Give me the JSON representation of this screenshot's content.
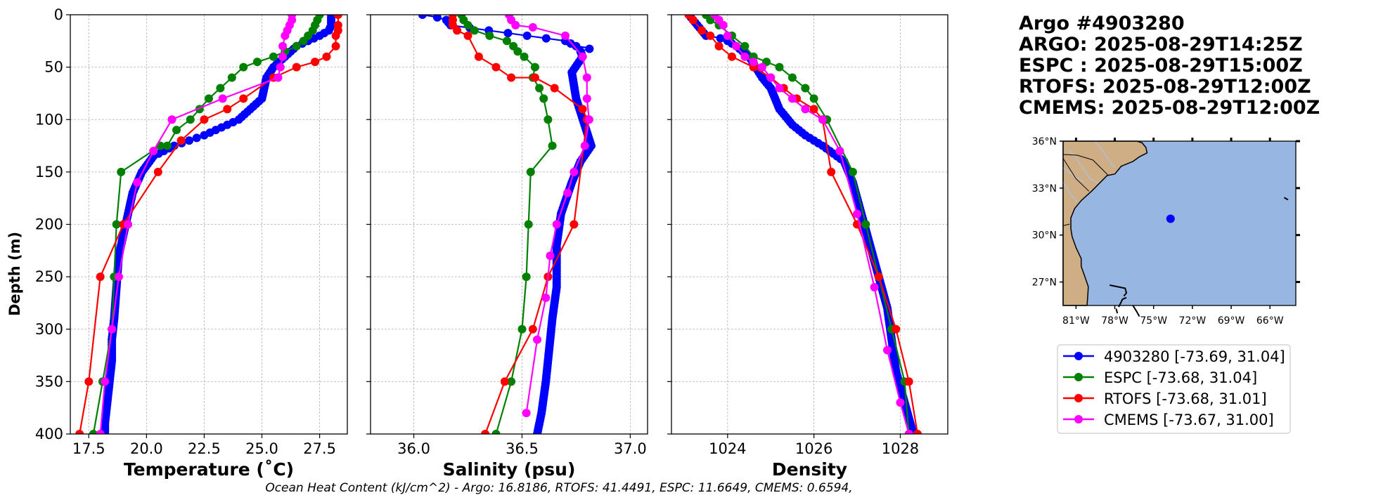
{
  "titles": [
    "Argo #4903280",
    "ARGO: 2025-08-29T14:25Z",
    "ESPC : 2025-08-29T15:00Z",
    "RTOFS: 2025-08-29T12:00Z",
    "CMEMS: 2025-08-29T12:00Z"
  ],
  "footer": "Ocean Heat Content (kJ/cm^2) - Argo: 16.8186,  RTOFS: 41.4491,  ESPC: 11.6649,  CMEMS: 0.6594,",
  "colors": {
    "argo": "#0000ff",
    "espc": "#008000",
    "rtofs": "#ff0000",
    "cmems": "#ff00ff",
    "ocean": "#97b6e1",
    "land": "#cfae86",
    "grid": "#b0b0b0"
  },
  "legend": [
    {
      "label": "4903280 [-73.69, 31.04]",
      "color": "#0000ff"
    },
    {
      "label": "ESPC [-73.68, 31.04]",
      "color": "#008000"
    },
    {
      "label": "RTOFS [-73.68, 31.01]",
      "color": "#ff0000"
    },
    {
      "label": "CMEMS [-73.67, 31.00]",
      "color": "#ff00ff"
    }
  ],
  "map": {
    "lat_ticks": [
      "36°N",
      "33°N",
      "30°N",
      "27°N"
    ],
    "lon_ticks": [
      "81°W",
      "78°W",
      "75°W",
      "72°W",
      "69°W",
      "66°W"
    ],
    "lon_range": [
      -82,
      -64
    ],
    "lat_range": [
      25.5,
      36
    ],
    "float": {
      "lon": -73.69,
      "lat": 31.04
    }
  },
  "chart_data": [
    {
      "type": "line",
      "xlabel": "Temperature (˚C)",
      "ylabel": "Depth (m)",
      "xlim": [
        16.7,
        28.7
      ],
      "ylim": [
        400,
        0
      ],
      "xticks": [
        17.5,
        20.0,
        22.5,
        25.0,
        27.5
      ],
      "xtick_labels": [
        "17.5",
        "20.0",
        "22.5",
        "25.0",
        "27.5"
      ],
      "yticks": [
        0,
        50,
        100,
        150,
        200,
        250,
        300,
        350,
        400
      ],
      "ytick_labels": [
        "0",
        "50",
        "100",
        "150",
        "200",
        "250",
        "300",
        "350",
        "400"
      ],
      "series": [
        {
          "name": "4903280",
          "dense": true,
          "x": [
            28.0,
            28.0,
            28.0,
            27.9,
            27.5,
            26.5,
            25.5,
            25.2,
            25.0,
            24.0,
            22.5,
            21.2,
            20.3,
            19.8,
            19.4,
            19.2,
            19.0,
            18.8,
            18.7,
            18.6,
            18.5,
            18.5,
            18.4,
            18.3,
            18.2,
            18.2
          ],
          "y": [
            0,
            5,
            10,
            15,
            20,
            30,
            50,
            60,
            80,
            100,
            115,
            125,
            135,
            150,
            170,
            190,
            210,
            230,
            260,
            290,
            310,
            330,
            350,
            370,
            390,
            400
          ]
        },
        {
          "name": "ESPC",
          "x": [
            27.5,
            27.4,
            27.3,
            27.2,
            27.0,
            26.8,
            26.5,
            26.0,
            25.5,
            24.8,
            24.2,
            23.7,
            23.2,
            22.7,
            22.3,
            21.9,
            21.3,
            20.9,
            20.6,
            18.9,
            18.7,
            18.6,
            18.5,
            18.1,
            17.7
          ],
          "y": [
            0,
            5,
            10,
            15,
            20,
            25,
            30,
            35,
            40,
            45,
            50,
            60,
            70,
            80,
            90,
            100,
            110,
            125,
            125,
            150,
            200,
            250,
            300,
            350,
            400
          ]
        },
        {
          "name": "RTOFS",
          "x": [
            28.3,
            28.3,
            28.3,
            28.2,
            28.2,
            27.8,
            27.3,
            26.5,
            25.5,
            24.2,
            23.5,
            22.5,
            21.5,
            20.5,
            19.0,
            18.0,
            17.5,
            17.1
          ],
          "y": [
            0,
            10,
            15,
            20,
            30,
            40,
            45,
            50,
            60,
            80,
            90,
            100,
            120,
            150,
            200,
            250,
            350,
            400
          ]
        },
        {
          "name": "CMEMS",
          "x": [
            26.3,
            26.3,
            26.2,
            26.1,
            26.0,
            25.9,
            25.9,
            25.8,
            25.7,
            23.3,
            21.1,
            20.3,
            19.6,
            19.2,
            18.8,
            18.5,
            18.2,
            18.0
          ],
          "y": [
            0,
            5,
            10,
            15,
            20,
            30,
            40,
            50,
            60,
            80,
            100,
            130,
            160,
            200,
            250,
            300,
            350,
            400
          ]
        }
      ]
    },
    {
      "type": "line",
      "xlabel": "Salinity (psu)",
      "xlim": [
        35.8,
        37.08
      ],
      "ylim": [
        400,
        0
      ],
      "xticks": [
        36.0,
        36.5,
        37.0
      ],
      "xtick_labels": [
        "36.0",
        "36.5",
        "37.0"
      ],
      "series": [
        {
          "name": "4903280",
          "dense": true,
          "x": [
            36.04,
            36.1,
            36.15,
            36.17,
            36.7,
            36.75,
            36.82,
            36.77,
            36.78,
            36.73,
            36.75,
            36.82,
            36.77,
            36.73,
            36.68,
            36.66,
            36.66,
            36.64,
            36.63,
            36.62,
            36.61,
            36.59,
            36.57
          ],
          "y": [
            0,
            2,
            5,
            10,
            25,
            30,
            32,
            35,
            40,
            55,
            80,
            125,
            140,
            160,
            190,
            220,
            260,
            290,
            310,
            330,
            350,
            380,
            400
          ]
        },
        {
          "name": "ESPC",
          "x": [
            36.22,
            36.23,
            36.25,
            36.28,
            36.35,
            36.43,
            36.46,
            36.48,
            36.51,
            36.56,
            36.55,
            36.58,
            36.6,
            36.62,
            36.64,
            36.54,
            36.53,
            36.52,
            36.5,
            36.45,
            36.38
          ],
          "y": [
            0,
            5,
            10,
            15,
            20,
            25,
            30,
            35,
            40,
            50,
            60,
            70,
            80,
            100,
            125,
            150,
            200,
            250,
            300,
            350,
            400
          ]
        },
        {
          "name": "RTOFS",
          "x": [
            36.18,
            36.18,
            36.18,
            36.2,
            36.25,
            36.3,
            36.38,
            36.45,
            36.56,
            36.65,
            36.78,
            36.8,
            36.74,
            36.62,
            36.55,
            36.42,
            36.33
          ],
          "y": [
            0,
            5,
            10,
            15,
            20,
            40,
            50,
            60,
            60,
            70,
            90,
            100,
            200,
            250,
            300,
            350,
            400
          ]
        },
        {
          "name": "CMEMS",
          "x": [
            36.44,
            36.45,
            36.47,
            36.55,
            36.7,
            36.78,
            36.8,
            36.8,
            36.81,
            36.79,
            36.74,
            36.71,
            36.66,
            36.63,
            36.61,
            36.57,
            36.52
          ],
          "y": [
            0,
            5,
            10,
            12,
            20,
            40,
            60,
            80,
            100,
            125,
            150,
            170,
            200,
            230,
            270,
            310,
            380
          ]
        }
      ]
    },
    {
      "type": "line",
      "xlabel": "Density",
      "xlim": [
        1022.7,
        1029.1
      ],
      "ylim": [
        400,
        0
      ],
      "xticks": [
        1024,
        1026,
        1028
      ],
      "xtick_labels": [
        "1024",
        "1026",
        "1028"
      ],
      "series": [
        {
          "name": "4903280",
          "dense": true,
          "x": [
            1023.1,
            1023.3,
            1023.5,
            1023.8,
            1024.0,
            1024.2,
            1024.5,
            1024.8,
            1025.0,
            1025.2,
            1025.5,
            1025.8,
            1026.2,
            1026.7,
            1026.9,
            1027.1,
            1027.3,
            1027.5,
            1027.7,
            1027.8,
            1027.9,
            1028.1,
            1028.3
          ],
          "y": [
            0,
            10,
            20,
            22,
            25,
            30,
            40,
            60,
            70,
            90,
            105,
            115,
            125,
            140,
            160,
            190,
            220,
            250,
            280,
            310,
            340,
            370,
            400
          ]
        },
        {
          "name": "ESPC",
          "x": [
            1023.5,
            1023.6,
            1023.8,
            1024.1,
            1024.4,
            1024.6,
            1024.9,
            1025.2,
            1025.5,
            1025.8,
            1026.0,
            1026.3,
            1026.9,
            1027.2,
            1027.5,
            1027.8,
            1028.1,
            1028.2
          ],
          "y": [
            0,
            5,
            10,
            20,
            30,
            40,
            45,
            50,
            60,
            70,
            80,
            100,
            150,
            200,
            250,
            300,
            350,
            400
          ]
        },
        {
          "name": "RTOFS",
          "x": [
            1023.1,
            1023.2,
            1023.4,
            1023.6,
            1023.8,
            1024.1,
            1024.6,
            1025.0,
            1025.3,
            1025.6,
            1026.0,
            1026.2,
            1026.4,
            1027.0,
            1027.5,
            1027.9,
            1028.2,
            1028.4
          ],
          "y": [
            0,
            5,
            15,
            20,
            30,
            40,
            50,
            60,
            70,
            80,
            90,
            100,
            150,
            200,
            250,
            300,
            350,
            400
          ]
        },
        {
          "name": "CMEMS",
          "x": [
            1023.7,
            1023.8,
            1023.9,
            1024.0,
            1024.2,
            1024.4,
            1024.6,
            1024.8,
            1025.0,
            1025.2,
            1025.5,
            1025.8,
            1026.2,
            1026.6,
            1027.0,
            1027.4,
            1027.7,
            1028.0,
            1028.2
          ],
          "y": [
            0,
            5,
            10,
            20,
            30,
            40,
            45,
            50,
            60,
            70,
            80,
            90,
            100,
            130,
            190,
            260,
            320,
            370,
            400
          ]
        }
      ]
    }
  ]
}
